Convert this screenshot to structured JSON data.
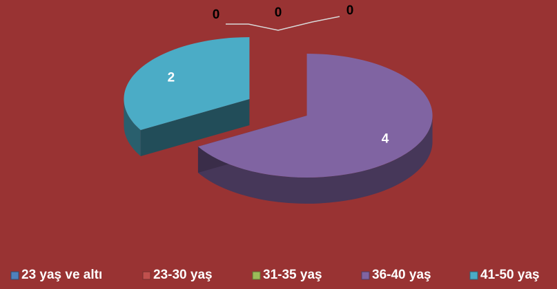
{
  "chart_data": {
    "type": "pie",
    "style": "3d-exploded",
    "categories": [
      "23 yaş ve altı",
      "23-30 yaş",
      "31-35 yaş",
      "36-40 yaş",
      "41-50 yaş"
    ],
    "values": [
      0,
      0,
      0,
      4,
      2
    ],
    "data_labels": [
      "0",
      "0",
      "0",
      "4",
      "2"
    ],
    "colors": [
      "#4f81bd",
      "#c0504d",
      "#9bbb59",
      "#8064a2",
      "#4bacc6"
    ],
    "legend_position": "bottom",
    "background": "#993333"
  }
}
